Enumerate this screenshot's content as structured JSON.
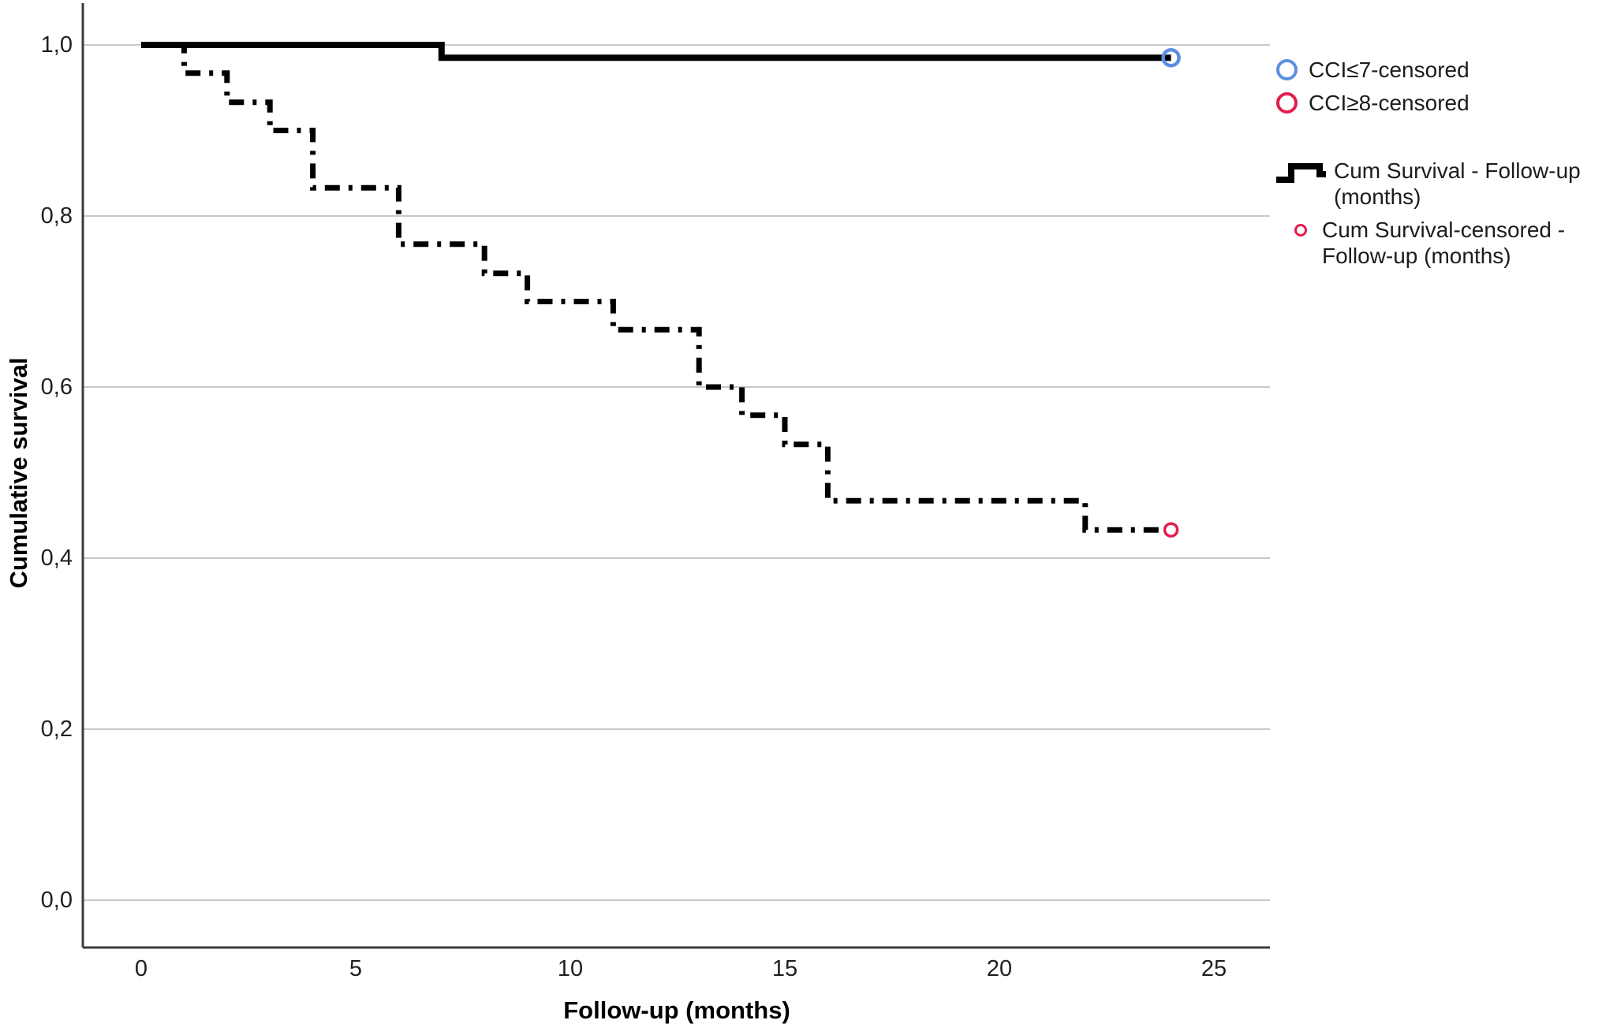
{
  "page": {
    "background": "#ffffff"
  },
  "axes": {
    "x_title": "Follow-up (months)",
    "y_title": "Cumulative survival",
    "x_ticks": [
      {
        "label": "0",
        "value": 0
      },
      {
        "label": "5",
        "value": 5
      },
      {
        "label": "10",
        "value": 10
      },
      {
        "label": "15",
        "value": 15
      },
      {
        "label": "20",
        "value": 20
      },
      {
        "label": "25",
        "value": 25
      }
    ],
    "y_ticks": [
      {
        "label": "0,0",
        "value": 0.0
      },
      {
        "label": "0,2",
        "value": 0.2
      },
      {
        "label": "0,4",
        "value": 0.4
      },
      {
        "label": "0,6",
        "value": 0.6
      },
      {
        "label": "0,8",
        "value": 0.8
      },
      {
        "label": "1,0",
        "value": 1.0
      }
    ]
  },
  "legend": {
    "items": [
      {
        "label": "CCI≤7-censored",
        "marker": "circle-outline-large",
        "color": "#5b8ee0"
      },
      {
        "label": "CCI≥8-censored",
        "marker": "circle-outline-large",
        "color": "#e11e4c"
      },
      {
        "label": "Cum Survival - Follow-up (months)",
        "marker": "step-line",
        "color": "#000000"
      },
      {
        "label": "Cum Survival-censored - Follow-up (months)",
        "marker": "circle-outline-small",
        "color": "#e11e4c"
      }
    ]
  },
  "colors": {
    "curve": "#000000",
    "gridline": "#c8c8c8",
    "axis_line": "#3a3a3a",
    "censored_group1": "#5b8ee0",
    "censored_group2": "#e11e4c"
  },
  "chart_data": {
    "type": "line",
    "subtype": "kaplan_meier_step",
    "title": "",
    "xlabel": "Follow-up (months)",
    "ylabel": "Cumulative survival",
    "xlim": [
      -1.4,
      26.3
    ],
    "ylim": [
      -0.055,
      1.045
    ],
    "x_tick_values": [
      0,
      5,
      10,
      15,
      20,
      25
    ],
    "y_tick_values": [
      0.0,
      0.2,
      0.4,
      0.6,
      0.8,
      1.0
    ],
    "grid": "horizontal-only",
    "legend_position": "right-top",
    "series": [
      {
        "name": "CCI≤7",
        "line_style": "solid",
        "color": "#000000",
        "steps": [
          [
            0,
            1.0
          ],
          [
            7,
            0.985
          ]
        ],
        "end_x": 24,
        "censored_points": [
          [
            24,
            0.985
          ]
        ],
        "censor_marker_color": "#5b8ee0"
      },
      {
        "name": "CCI≥8",
        "line_style": "dashed",
        "color": "#000000",
        "steps": [
          [
            0,
            1.0
          ],
          [
            1,
            0.967
          ],
          [
            2,
            0.933
          ],
          [
            3,
            0.9
          ],
          [
            4,
            0.833
          ],
          [
            6,
            0.767
          ],
          [
            8,
            0.733
          ],
          [
            9,
            0.7
          ],
          [
            11,
            0.667
          ],
          [
            13,
            0.6
          ],
          [
            14,
            0.567
          ],
          [
            15,
            0.533
          ],
          [
            16,
            0.467
          ],
          [
            22,
            0.433
          ]
        ],
        "end_x": 24,
        "censored_points": [
          [
            24,
            0.433
          ]
        ],
        "censor_marker_color": "#e11e4c"
      }
    ]
  }
}
